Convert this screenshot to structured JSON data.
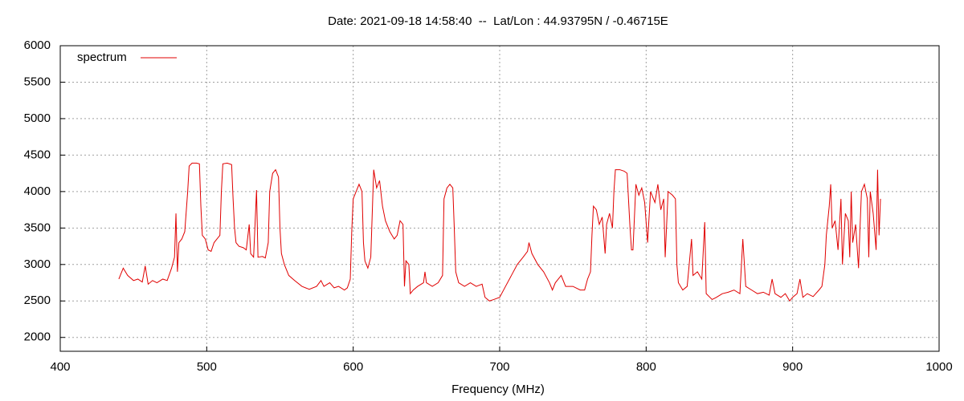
{
  "chart_data": {
    "type": "line",
    "title": "Date: 2021-09-18 14:58:40  --  Lat/Lon : 44.93795N / -0.46715E",
    "xlabel": "Frequency (MHz)",
    "xlim": [
      400,
      1000
    ],
    "xticks": [
      400,
      500,
      600,
      700,
      800,
      900,
      1000
    ],
    "ylim": [
      1810,
      6000
    ],
    "yticks": [
      2000,
      2500,
      3000,
      3500,
      4000,
      4500,
      5000,
      5500,
      6000
    ],
    "grid": true,
    "legend": "top-left",
    "x": [
      440,
      443,
      446,
      450,
      453,
      456,
      458,
      460,
      463,
      466,
      470,
      473,
      476,
      478,
      479,
      480,
      481,
      483,
      485,
      487,
      488,
      490,
      493,
      495,
      496,
      497,
      499,
      501,
      503,
      505,
      507,
      509,
      510,
      511,
      514,
      517,
      518,
      519,
      520,
      522,
      525,
      527,
      529,
      530,
      532,
      534,
      535,
      538,
      540,
      542,
      543,
      545,
      547,
      549,
      550,
      551,
      553,
      556,
      560,
      565,
      570,
      575,
      578,
      580,
      584,
      587,
      590,
      594,
      596,
      598,
      599,
      600,
      602,
      604,
      606,
      607,
      608,
      610,
      612,
      614,
      616,
      618,
      620,
      622,
      625,
      628,
      630,
      632,
      634,
      635,
      636,
      638,
      639,
      641,
      644,
      648,
      649,
      650,
      654,
      658,
      661,
      662,
      664,
      666,
      668,
      669,
      670,
      672,
      676,
      680,
      684,
      688,
      690,
      693,
      696,
      700,
      704,
      708,
      712,
      716,
      719,
      720,
      722,
      726,
      730,
      734,
      736,
      738,
      742,
      745,
      750,
      755,
      758,
      760,
      762,
      763,
      764,
      766,
      768,
      770,
      772,
      773,
      775,
      777,
      778,
      779,
      782,
      785,
      787,
      789,
      790,
      791,
      793,
      795,
      797,
      799,
      801,
      803,
      806,
      808,
      810,
      812,
      813,
      815,
      818,
      820,
      821,
      822,
      825,
      828,
      831,
      832,
      835,
      838,
      840,
      841,
      845,
      848,
      852,
      856,
      860,
      864,
      866,
      868,
      872,
      876,
      880,
      884,
      886,
      888,
      892,
      895,
      898,
      900,
      903,
      905,
      907,
      910,
      914,
      918,
      920,
      922,
      923,
      925,
      926,
      927,
      929,
      931,
      933,
      934,
      936,
      938,
      939,
      940,
      941,
      943,
      945,
      946,
      947,
      949,
      951,
      952,
      953,
      955,
      957,
      958,
      959,
      960
    ],
    "series": [
      {
        "name": "spectrum",
        "color": "#e00000",
        "values": [
          2800,
          2950,
          2850,
          2780,
          2800,
          2760,
          2980,
          2730,
          2780,
          2750,
          2800,
          2780,
          2950,
          3100,
          3700,
          2900,
          3300,
          3350,
          3450,
          4000,
          4350,
          4390,
          4390,
          4380,
          3800,
          3400,
          3350,
          3200,
          3180,
          3300,
          3350,
          3400,
          4000,
          4380,
          4390,
          4370,
          3900,
          3500,
          3300,
          3250,
          3230,
          3200,
          3550,
          3150,
          3100,
          4020,
          3100,
          3110,
          3090,
          3300,
          4000,
          4250,
          4300,
          4200,
          3500,
          3150,
          3000,
          2850,
          2780,
          2700,
          2660,
          2700,
          2780,
          2700,
          2750,
          2680,
          2700,
          2650,
          2680,
          2800,
          3450,
          3900,
          4000,
          4100,
          4000,
          3300,
          3050,
          2950,
          3100,
          4300,
          4050,
          4150,
          3800,
          3600,
          3450,
          3350,
          3400,
          3600,
          3550,
          2700,
          3050,
          3000,
          2600,
          2650,
          2700,
          2750,
          2900,
          2750,
          2700,
          2750,
          2850,
          3900,
          4050,
          4100,
          4050,
          3500,
          2900,
          2750,
          2700,
          2750,
          2700,
          2730,
          2550,
          2500,
          2520,
          2550,
          2700,
          2850,
          3000,
          3100,
          3180,
          3300,
          3150,
          3000,
          2900,
          2750,
          2650,
          2750,
          2850,
          2700,
          2700,
          2650,
          2650,
          2800,
          2900,
          3400,
          3800,
          3750,
          3550,
          3650,
          3150,
          3550,
          3700,
          3500,
          4000,
          4300,
          4300,
          4280,
          4250,
          3500,
          3200,
          3200,
          4100,
          3950,
          4050,
          3850,
          3300,
          4000,
          3850,
          4100,
          3750,
          3900,
          3100,
          4000,
          3950,
          3900,
          3000,
          2750,
          2650,
          2700,
          3350,
          2850,
          2900,
          2800,
          3580,
          2600,
          2520,
          2550,
          2600,
          2620,
          2650,
          2600,
          3350,
          2700,
          2650,
          2600,
          2620,
          2580,
          2800,
          2600,
          2550,
          2600,
          2500,
          2550,
          2600,
          2800,
          2550,
          2600,
          2560,
          2650,
          2700,
          3000,
          3400,
          3800,
          4100,
          3500,
          3600,
          3200,
          3900,
          3000,
          3700,
          3600,
          3100,
          4000,
          3300,
          3550,
          2950,
          3500,
          4000,
          4100,
          3900,
          3100,
          4000,
          3700,
          3200,
          4300,
          3400,
          3900
        ]
      }
    ]
  }
}
